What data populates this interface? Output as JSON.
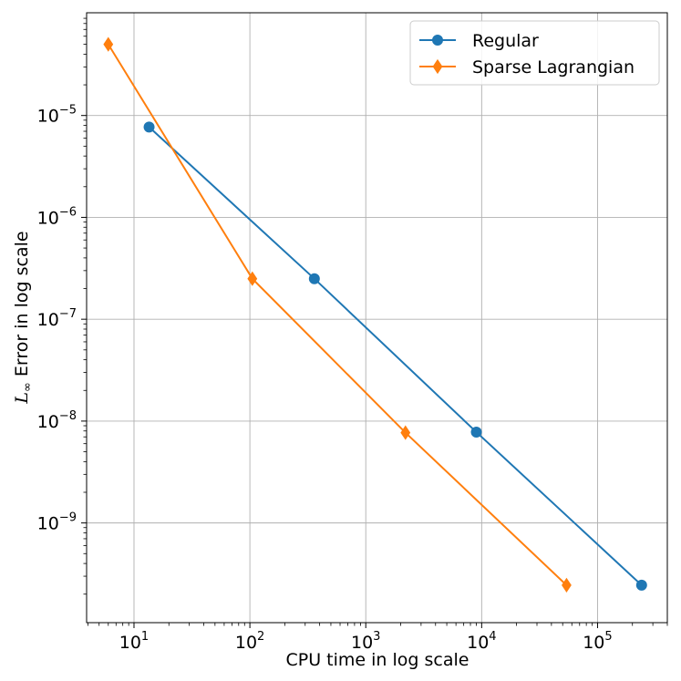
{
  "chart_data": {
    "type": "line",
    "xlabel": "CPU time in log scale",
    "ylabel": {
      "symbol": "L",
      "subscript": "∞",
      "text": " Error in log scale"
    },
    "xscale": "log",
    "yscale": "log",
    "xlim": [
      3.9,
      400000
    ],
    "ylim": [
      1.05e-10,
      0.000102
    ],
    "grid": true,
    "legend_position": "top-right",
    "x_ticks": [
      {
        "base": "10",
        "exp": "1",
        "value": 10
      },
      {
        "base": "10",
        "exp": "2",
        "value": 100
      },
      {
        "base": "10",
        "exp": "3",
        "value": 1000
      },
      {
        "base": "10",
        "exp": "4",
        "value": 10000
      },
      {
        "base": "10",
        "exp": "5",
        "value": 100000
      }
    ],
    "y_ticks": [
      {
        "base": "10",
        "exp": "−9",
        "value": 1e-09
      },
      {
        "base": "10",
        "exp": "−8",
        "value": 1e-08
      },
      {
        "base": "10",
        "exp": "−7",
        "value": 1e-07
      },
      {
        "base": "10",
        "exp": "−6",
        "value": 1e-06
      },
      {
        "base": "10",
        "exp": "−5",
        "value": 1e-05
      }
    ],
    "series": [
      {
        "name": "Regular",
        "color": "#1f77b4",
        "marker": "circle",
        "x": [
          13.5,
          360,
          9000,
          240000
        ],
        "y": [
          7.7e-06,
          2.5e-07,
          7.8e-09,
          2.45e-10
        ]
      },
      {
        "name": "Sparse Lagrangian",
        "color": "#ff7f0e",
        "marker": "diamond",
        "x": [
          6,
          105,
          2200,
          54000
        ],
        "y": [
          5e-05,
          2.5e-07,
          7.7e-09,
          2.45e-10
        ]
      }
    ]
  }
}
